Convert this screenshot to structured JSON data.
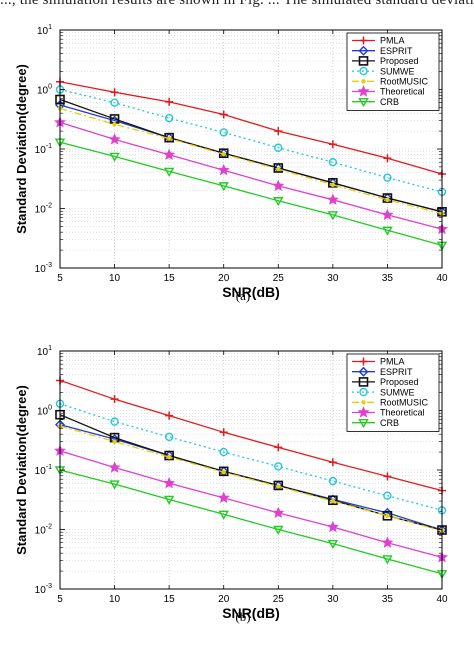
{
  "top_text": "..., the simulation results are shown in Fig. ... The simulated standard deviation ...",
  "chart_data": [
    {
      "type": "line",
      "caption": "(a)",
      "xlabel": "SNR(dB)",
      "ylabel": "Standard Deviation(degree)",
      "xlim": [
        5,
        40
      ],
      "ylim": [
        0.001,
        10
      ],
      "yscale": "log",
      "grid": true,
      "legend_position": "top-right",
      "x": [
        5,
        10,
        15,
        20,
        25,
        30,
        35,
        40
      ],
      "x_tick_labels": [
        "5",
        "10",
        "15",
        "20",
        "25",
        "30",
        "35",
        "40"
      ],
      "y_tick_labels": [
        {
          "base": "10",
          "exp": "-3"
        },
        {
          "base": "10",
          "exp": "-2"
        },
        {
          "base": "10",
          "exp": "-1"
        },
        {
          "base": "10",
          "exp": "0"
        },
        {
          "base": "10",
          "exp": "1"
        }
      ],
      "series": [
        {
          "name": "PMLA",
          "color": "#e31a1c",
          "marker": "plus",
          "dash": "solid",
          "values": [
            1.35,
            0.9,
            0.62,
            0.38,
            0.2,
            0.12,
            0.07,
            0.038
          ]
        },
        {
          "name": "ESPRIT",
          "color": "#1f3fd6",
          "marker": "diamond",
          "dash": "solid",
          "values": [
            0.55,
            0.3,
            0.155,
            0.085,
            0.048,
            0.027,
            0.015,
            0.0088
          ]
        },
        {
          "name": "Proposed",
          "color": "#111111",
          "marker": "square",
          "dash": "solid",
          "values": [
            0.68,
            0.32,
            0.155,
            0.085,
            0.048,
            0.027,
            0.015,
            0.0088
          ]
        },
        {
          "name": "SUMWE",
          "color": "#22c7d8",
          "marker": "circle",
          "dash": "dotted",
          "values": [
            1.0,
            0.6,
            0.33,
            0.19,
            0.105,
            0.06,
            0.033,
            0.019
          ]
        },
        {
          "name": "RootMUSIC",
          "color": "#e8d000",
          "marker": "point",
          "dash": "dashdot",
          "values": [
            0.48,
            0.26,
            0.15,
            0.082,
            0.046,
            0.025,
            0.014,
            0.0082
          ]
        },
        {
          "name": "Theoretical",
          "color": "#e040d0",
          "marker": "star",
          "dash": "solid",
          "values": [
            0.28,
            0.145,
            0.08,
            0.044,
            0.024,
            0.014,
            0.0078,
            0.0045
          ]
        },
        {
          "name": "CRB",
          "color": "#22cc22",
          "marker": "triangle-down",
          "dash": "solid",
          "values": [
            0.13,
            0.075,
            0.042,
            0.024,
            0.0135,
            0.0078,
            0.0043,
            0.0024
          ]
        }
      ]
    },
    {
      "type": "line",
      "caption": "(b)",
      "xlabel": "SNR(dB)",
      "ylabel": "Standard Deviation(degree)",
      "xlim": [
        5,
        40
      ],
      "ylim": [
        0.001,
        10
      ],
      "yscale": "log",
      "grid": true,
      "legend_position": "top-right",
      "x": [
        5,
        10,
        15,
        20,
        25,
        30,
        35,
        40
      ],
      "x_tick_labels": [
        "5",
        "10",
        "15",
        "20",
        "25",
        "30",
        "35",
        "40"
      ],
      "y_tick_labels": [
        {
          "base": "10",
          "exp": "-3"
        },
        {
          "base": "10",
          "exp": "-2"
        },
        {
          "base": "10",
          "exp": "-1"
        },
        {
          "base": "10",
          "exp": "0"
        },
        {
          "base": "10",
          "exp": "1"
        }
      ],
      "series": [
        {
          "name": "PMLA",
          "color": "#e31a1c",
          "marker": "plus",
          "dash": "solid",
          "values": [
            3.2,
            1.55,
            0.82,
            0.43,
            0.24,
            0.135,
            0.078,
            0.045
          ]
        },
        {
          "name": "ESPRIT",
          "color": "#1f3fd6",
          "marker": "diamond",
          "dash": "solid",
          "values": [
            0.58,
            0.33,
            0.175,
            0.095,
            0.055,
            0.032,
            0.019,
            0.0098
          ]
        },
        {
          "name": "Proposed",
          "color": "#111111",
          "marker": "square",
          "dash": "solid",
          "values": [
            0.85,
            0.35,
            0.175,
            0.095,
            0.055,
            0.031,
            0.017,
            0.0098
          ]
        },
        {
          "name": "SUMWE",
          "color": "#22c7d8",
          "marker": "circle",
          "dash": "dotted",
          "values": [
            1.3,
            0.65,
            0.36,
            0.2,
            0.115,
            0.065,
            0.037,
            0.021
          ]
        },
        {
          "name": "RootMUSIC",
          "color": "#e8d000",
          "marker": "point",
          "dash": "dashdot",
          "values": [
            0.55,
            0.3,
            0.165,
            0.092,
            0.053,
            0.03,
            0.017,
            0.0095
          ]
        },
        {
          "name": "Theoretical",
          "color": "#e040d0",
          "marker": "star",
          "dash": "solid",
          "values": [
            0.21,
            0.11,
            0.06,
            0.034,
            0.019,
            0.011,
            0.006,
            0.0034
          ]
        },
        {
          "name": "CRB",
          "color": "#22cc22",
          "marker": "triangle-down",
          "dash": "solid",
          "values": [
            0.1,
            0.058,
            0.032,
            0.018,
            0.01,
            0.0058,
            0.0032,
            0.0018
          ]
        }
      ]
    }
  ]
}
